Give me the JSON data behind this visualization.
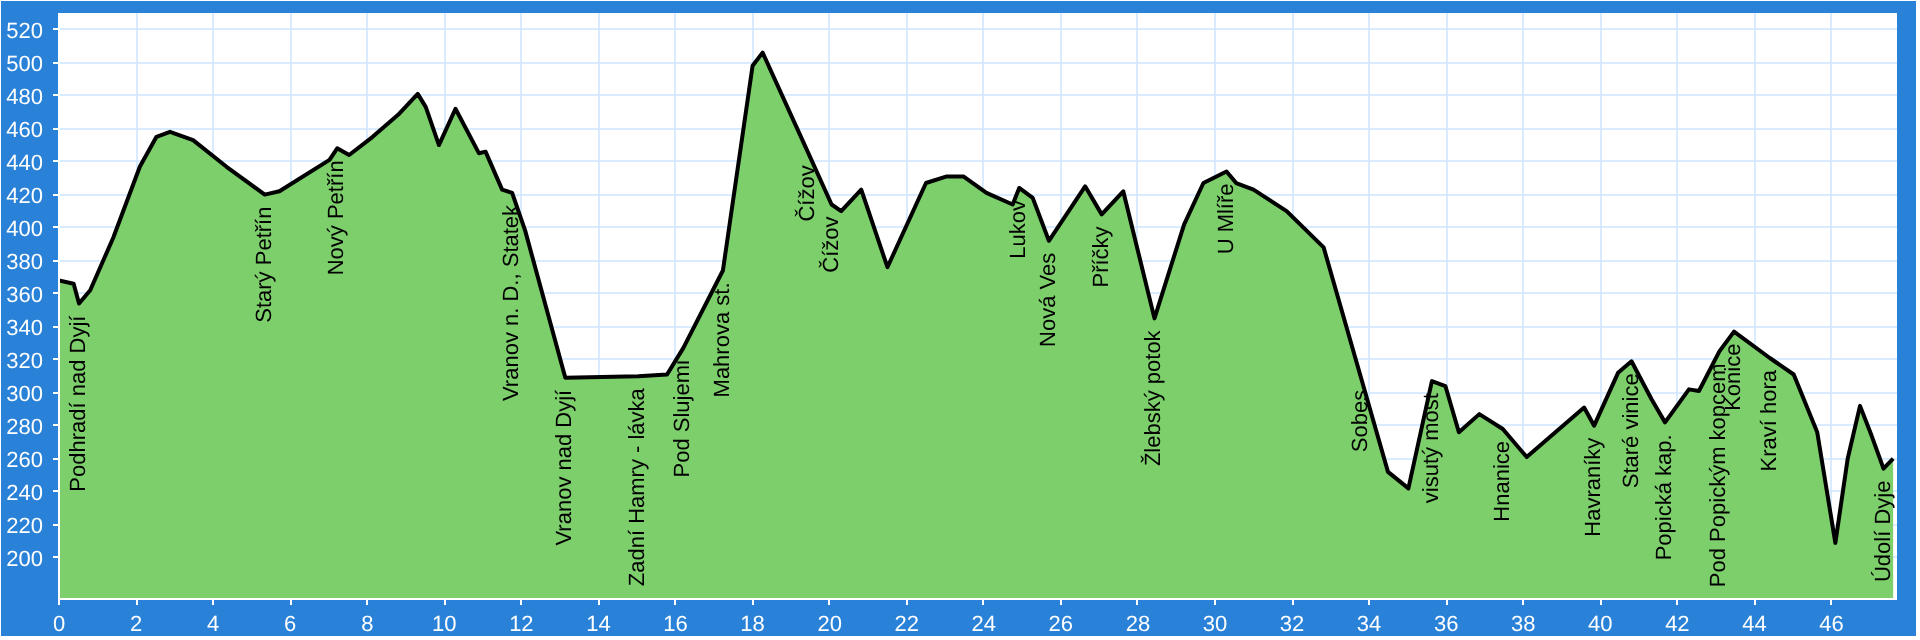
{
  "chart_data": {
    "type": "area",
    "color": "#7ccf6a",
    "x": [
      0,
      0.38,
      0.52,
      0.81,
      1.41,
      2.1,
      2.53,
      2.88,
      3.48,
      4.34,
      5.34,
      5.72,
      7.02,
      7.22,
      7.53,
      8.14,
      8.83,
      9.31,
      9.52,
      9.86,
      10.29,
      10.9,
      11.07,
      11.5,
      11.76,
      12.1,
      13.14,
      15.03,
      15.78,
      16.2,
      17.23,
      18,
      18.26,
      19.45,
      20.05,
      20.3,
      20.82,
      21.5,
      22.5,
      23.04,
      23.47,
      24.07,
      24.75,
      24.92,
      25.27,
      25.69,
      26.63,
      27.06,
      27.62,
      28.43,
      29.2,
      29.7,
      30.3,
      30.55,
      31.0,
      31.86,
      32.82,
      33.79,
      34.49,
      35.02,
      35.63,
      35.98,
      36.33,
      36.86,
      37.47,
      38.09,
      39.58,
      39.84,
      40.46,
      40.81,
      41.33,
      41.68,
      42.3,
      42.56,
      43.09,
      43.47,
      44.4,
      45.02,
      45.63,
      46.1,
      46.42,
      46.74,
      47.04,
      47.35,
      47.6
    ],
    "values": [
      368,
      366,
      354,
      362,
      394,
      437,
      455,
      458,
      453,
      437,
      420,
      422,
      441,
      448,
      444,
      455,
      469,
      481,
      473,
      450,
      472,
      445,
      446,
      423,
      421,
      398,
      309,
      310,
      311,
      327,
      374,
      498,
      506,
      445,
      414,
      410,
      423,
      376,
      427,
      431,
      431,
      421,
      414,
      424,
      418,
      392,
      425,
      408,
      422,
      345,
      402,
      427,
      434,
      427,
      423,
      410,
      388,
      309,
      252,
      242,
      307,
      304,
      276,
      287,
      278,
      261,
      291,
      280,
      312,
      319,
      296,
      282,
      302,
      301,
      325,
      337,
      321,
      311,
      276,
      209,
      260,
      292,
      274,
      254,
      260
    ],
    "xlim": [
      0,
      47.7
    ],
    "ylim": [
      175,
      530
    ],
    "xticks": [
      0,
      2,
      4,
      6,
      8,
      10,
      12,
      14,
      16,
      18,
      20,
      22,
      24,
      26,
      28,
      30,
      32,
      34,
      36,
      38,
      40,
      42,
      44,
      46
    ],
    "yticks": [
      200,
      220,
      240,
      260,
      280,
      300,
      320,
      340,
      360,
      380,
      400,
      420,
      440,
      460,
      480,
      500,
      520
    ],
    "grid": true,
    "annotations": [
      {
        "text": "Podhradí nad Dyjí",
        "x": 0.52,
        "y": 354
      },
      {
        "text": "Starý Petřín",
        "x": 5.34,
        "y": 420
      },
      {
        "text": "Nový Petřín",
        "x": 7.22,
        "y": 448
      },
      {
        "text": "Vranov n. D., Statek",
        "x": 11.76,
        "y": 421
      },
      {
        "text": "Vranov nad Dyjí",
        "x": 13.14,
        "y": 309
      },
      {
        "text": "Zadní Hamry - lávka",
        "x": 15.03,
        "y": 310
      },
      {
        "text": "Pod Slujemi",
        "x": 16.2,
        "y": 327
      },
      {
        "text": "Mahrova st.",
        "x": 17.23,
        "y": 374
      },
      {
        "text": "Čížov",
        "x": 19.45,
        "y": 445
      },
      {
        "text": "Čížov",
        "x": 20.05,
        "y": 414
      },
      {
        "text": "Lukov",
        "x": 24.92,
        "y": 424
      },
      {
        "text": "Nová Ves",
        "x": 25.69,
        "y": 392
      },
      {
        "text": "Příčky",
        "x": 27.06,
        "y": 408
      },
      {
        "text": "Žlebský potok",
        "x": 28.43,
        "y": 345
      },
      {
        "text": "U Mlíře",
        "x": 30.3,
        "y": 434
      },
      {
        "text": "Sobes",
        "x": 33.79,
        "y": 309
      },
      {
        "text": "visutý most",
        "x": 35.63,
        "y": 307
      },
      {
        "text": "Hnanice",
        "x": 37.47,
        "y": 278
      },
      {
        "text": "Havraníky",
        "x": 39.84,
        "y": 280
      },
      {
        "text": "Staré vinice",
        "x": 40.81,
        "y": 319
      },
      {
        "text": "Popická kap.",
        "x": 41.68,
        "y": 282
      },
      {
        "text": "Pod Popickým kopcem",
        "x": 43.09,
        "y": 325
      },
      {
        "text": "Konice",
        "x": 43.47,
        "y": 337
      },
      {
        "text": "Kraví hora",
        "x": 44.4,
        "y": 321
      },
      {
        "text": "Údolí Dyje",
        "x": 47.35,
        "y": 254
      }
    ]
  }
}
